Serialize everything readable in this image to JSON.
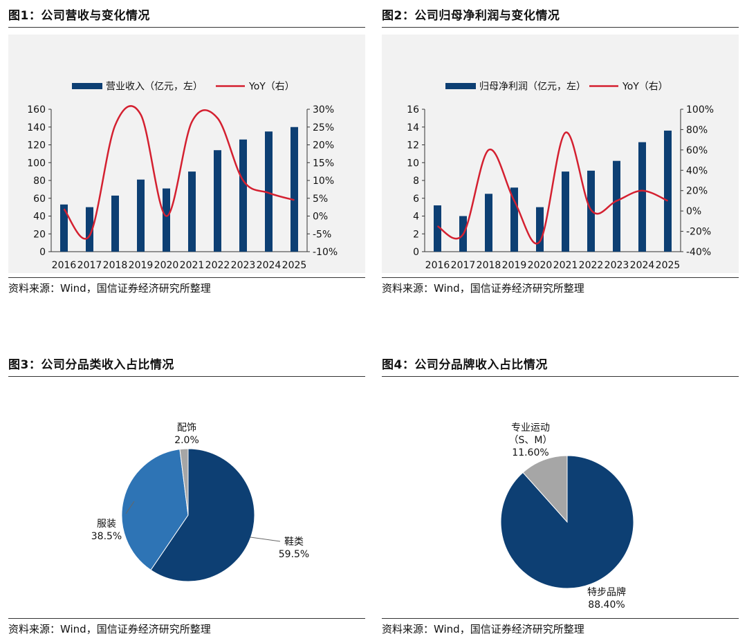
{
  "charts": [
    {
      "title": "图1：公司营收与变化情况",
      "source": "资料来源：Wind，国信证券经济研究所整理"
    },
    {
      "title": "图2：公司归母净利润与变化情况",
      "source": "资料来源：Wind，国信证券经济研究所整理"
    },
    {
      "title": "图3：公司分品类收入占比情况",
      "source": "资料来源：Wind，国信证券经济研究所整理"
    },
    {
      "title": "图4：公司分品牌收入占比情况",
      "source": "资料来源：Wind，国信证券经济研究所整理"
    }
  ],
  "colors": {
    "bar": "#0d3f73",
    "line": "#d42030",
    "dark_blue": "#0d3f73",
    "mid_blue": "#2e74b5",
    "gray": "#a6a6a6"
  },
  "chart_data": [
    {
      "type": "bar",
      "title": "图1：公司营收与变化情况",
      "categories": [
        "2016",
        "2017",
        "2018",
        "2019",
        "2020",
        "2021",
        "2022",
        "2023",
        "2024",
        "2025"
      ],
      "series": [
        {
          "name": "营业收入（亿元，左）",
          "type": "bar",
          "axis": "left",
          "values": [
            53,
            50,
            63,
            81,
            71,
            90,
            114,
            126,
            135,
            140
          ]
        },
        {
          "name": "YoY（右）",
          "type": "line",
          "axis": "right",
          "values": [
            2,
            -5.5,
            25.5,
            28.5,
            0,
            26.5,
            27.5,
            10,
            6.5,
            4.5
          ]
        }
      ],
      "left_axis": {
        "min": 0,
        "max": 160,
        "ticks": [
          0,
          20,
          40,
          60,
          80,
          100,
          120,
          140,
          160
        ],
        "labels": [
          "0",
          "20",
          "40",
          "60",
          "80",
          "100",
          "120",
          "140",
          "160"
        ]
      },
      "right_axis": {
        "min": -10,
        "max": 30,
        "ticks": [
          -10,
          -5,
          0,
          5,
          10,
          15,
          20,
          25,
          30
        ],
        "labels": [
          "-10%",
          "-5%",
          "0%",
          "5%",
          "10%",
          "15%",
          "20%",
          "25%",
          "30%"
        ]
      }
    },
    {
      "type": "bar",
      "title": "图2：公司归母净利润与变化情况",
      "categories": [
        "2016",
        "2017",
        "2018",
        "2019",
        "2020",
        "2021",
        "2022",
        "2023",
        "2024",
        "2025"
      ],
      "series": [
        {
          "name": "归母净利润（亿元，左）",
          "type": "bar",
          "axis": "left",
          "values": [
            5.2,
            4.0,
            6.5,
            7.2,
            5.0,
            9.0,
            9.1,
            10.2,
            12.3,
            13.6
          ]
        },
        {
          "name": "YoY（右）",
          "type": "line",
          "axis": "right",
          "values": [
            -15,
            -23,
            60,
            10,
            -30,
            77,
            1,
            10,
            20,
            10
          ]
        }
      ],
      "left_axis": {
        "min": 0,
        "max": 16,
        "ticks": [
          0,
          2,
          4,
          6,
          8,
          10,
          12,
          14,
          16
        ],
        "labels": [
          "0",
          "2",
          "4",
          "6",
          "8",
          "10",
          "12",
          "14",
          "16"
        ]
      },
      "right_axis": {
        "min": -40,
        "max": 100,
        "ticks": [
          -40,
          -20,
          0,
          20,
          40,
          60,
          80,
          100
        ],
        "labels": [
          "-40%",
          "-20%",
          "0%",
          "20%",
          "40%",
          "60%",
          "80%",
          "100%"
        ]
      }
    },
    {
      "type": "pie",
      "title": "图3：公司分品类收入占比情况",
      "slices": [
        {
          "name": "鞋类",
          "label": "59.5%",
          "value": 59.5,
          "color": "#0d3f73"
        },
        {
          "name": "服装",
          "label": "38.5%",
          "value": 38.5,
          "color": "#2e74b5"
        },
        {
          "name": "配饰",
          "label": "2.0%",
          "value": 2.0,
          "color": "#a6a6a6"
        }
      ]
    },
    {
      "type": "pie",
      "title": "图4：公司分品牌收入占比情况",
      "slices": [
        {
          "name": "特步品牌",
          "label": "88.40%",
          "value": 88.4,
          "color": "#0d3f73"
        },
        {
          "name": "专业运动",
          "name2": "（S、M）",
          "label": "11.60%",
          "value": 11.6,
          "color": "#a6a6a6"
        }
      ]
    }
  ]
}
